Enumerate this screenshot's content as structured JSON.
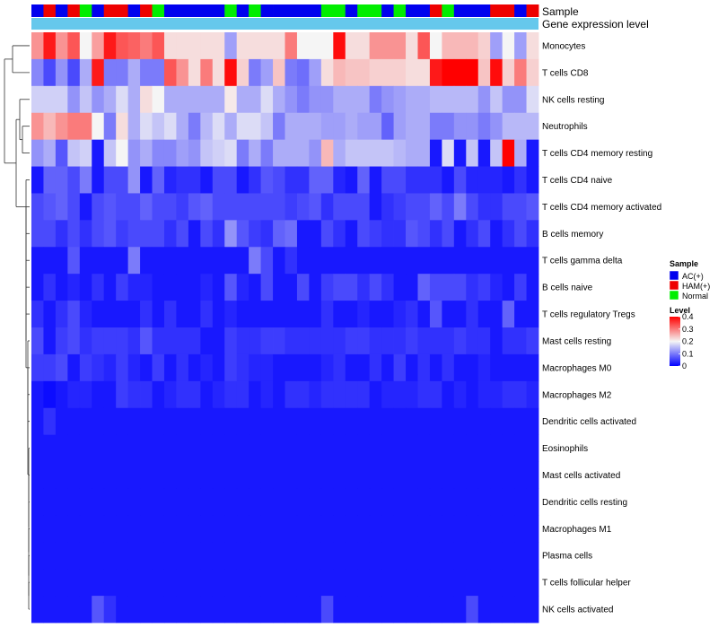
{
  "chart_data": {
    "type": "heatmap",
    "title": "",
    "annotation_rows": [
      {
        "name": "Sample",
        "legend_title": "Sample"
      },
      {
        "name": "Gene expression level",
        "legend_title": ""
      }
    ],
    "annotation_colors": {
      "Sample": {
        "AC(+)": "#0000ee",
        "HAM(+)": "#ee0000",
        "Normal": "#00ee00"
      },
      "Gene expression level": "#66c8ec"
    },
    "sample_groups": [
      "AC(+)",
      "HAM(+)",
      "AC(+)",
      "HAM(+)",
      "Normal",
      "AC(+)",
      "HAM(+)",
      "HAM(+)",
      "AC(+)",
      "HAM(+)",
      "Normal",
      "AC(+)",
      "AC(+)",
      "AC(+)",
      "AC(+)",
      "AC(+)",
      "Normal",
      "AC(+)",
      "Normal",
      "AC(+)",
      "AC(+)",
      "AC(+)",
      "AC(+)",
      "AC(+)",
      "Normal",
      "Normal",
      "AC(+)",
      "Normal",
      "Normal",
      "AC(+)",
      "Normal",
      "AC(+)",
      "AC(+)",
      "HAM(+)",
      "Normal",
      "AC(+)",
      "AC(+)",
      "AC(+)",
      "HAM(+)",
      "HAM(+)",
      "AC(+)",
      "HAM(+)"
    ],
    "rows": [
      "Monocytes",
      "T cells CD8",
      "NK cells resting",
      "Neutrophils",
      "T cells CD4 memory resting",
      "T cells CD4 naive",
      "T cells CD4 memory activated",
      "B cells memory",
      "T cells gamma delta",
      "B cells naive",
      "T cells regulatory  Tregs",
      "Mast cells resting",
      "Macrophages M0",
      "Macrophages M2",
      "Dendritic cells activated",
      "Eosinophils",
      "Mast cells activated",
      "Dendritic cells resting",
      "Macrophages M1",
      "Plasma cells",
      "T cells follicular helper",
      "NK cells activated"
    ],
    "values": [
      [
        0.28,
        0.38,
        0.28,
        0.33,
        0.2,
        0.27,
        0.38,
        0.33,
        0.32,
        0.3,
        0.33,
        0.22,
        0.22,
        0.22,
        0.22,
        0.22,
        0.13,
        0.22,
        0.22,
        0.22,
        0.22,
        0.3,
        0.2,
        0.2,
        0.2,
        0.39,
        0.22,
        0.22,
        0.28,
        0.28,
        0.28,
        0.22,
        0.33,
        0.2,
        0.25,
        0.25,
        0.25,
        0.23,
        0.13,
        0.2,
        0.13,
        0.22
      ],
      [
        0.11,
        0.06,
        0.12,
        0.06,
        0.14,
        0.38,
        0.1,
        0.1,
        0.14,
        0.1,
        0.1,
        0.33,
        0.28,
        0.22,
        0.3,
        0.22,
        0.39,
        0.23,
        0.1,
        0.13,
        0.24,
        0.1,
        0.09,
        0.13,
        0.22,
        0.25,
        0.24,
        0.24,
        0.23,
        0.23,
        0.23,
        0.22,
        0.22,
        0.38,
        0.4,
        0.4,
        0.4,
        0.24,
        0.39,
        0.23,
        0.3,
        0.23
      ],
      [
        0.17,
        0.17,
        0.17,
        0.12,
        0.16,
        0.12,
        0.14,
        0.18,
        0.14,
        0.22,
        0.2,
        0.14,
        0.14,
        0.14,
        0.14,
        0.14,
        0.21,
        0.14,
        0.14,
        0.18,
        0.14,
        0.12,
        0.1,
        0.12,
        0.12,
        0.14,
        0.14,
        0.14,
        0.1,
        0.12,
        0.13,
        0.14,
        0.14,
        0.15,
        0.15,
        0.15,
        0.15,
        0.12,
        0.16,
        0.12,
        0.12,
        0.18
      ],
      [
        0.28,
        0.25,
        0.28,
        0.3,
        0.3,
        0.2,
        0.1,
        0.22,
        0.14,
        0.18,
        0.16,
        0.18,
        0.14,
        0.1,
        0.15,
        0.18,
        0.14,
        0.18,
        0.18,
        0.16,
        0.1,
        0.14,
        0.14,
        0.14,
        0.13,
        0.13,
        0.14,
        0.13,
        0.13,
        0.08,
        0.13,
        0.14,
        0.14,
        0.1,
        0.1,
        0.12,
        0.12,
        0.1,
        0.12,
        0.15,
        0.15,
        0.15
      ],
      [
        0.12,
        0.14,
        0.07,
        0.16,
        0.17,
        0.02,
        0.16,
        0.2,
        0.12,
        0.14,
        0.11,
        0.11,
        0.13,
        0.12,
        0.16,
        0.17,
        0.18,
        0.1,
        0.14,
        0.1,
        0.14,
        0.14,
        0.14,
        0.12,
        0.25,
        0.14,
        0.16,
        0.16,
        0.16,
        0.16,
        0.15,
        0.14,
        0.14,
        0.02,
        0.18,
        0.02,
        0.16,
        0.02,
        0.16,
        0.4,
        0.14,
        0.02
      ],
      [
        0.02,
        0.08,
        0.08,
        0.06,
        0.1,
        0.02,
        0.06,
        0.06,
        0.12,
        0.02,
        0.08,
        0.03,
        0.04,
        0.04,
        0.02,
        0.06,
        0.06,
        0.02,
        0.04,
        0.07,
        0.06,
        0.04,
        0.04,
        0.08,
        0.08,
        0.03,
        0.02,
        0.08,
        0.02,
        0.06,
        0.06,
        0.04,
        0.04,
        0.04,
        0.02,
        0.06,
        0.03,
        0.03,
        0.03,
        0.02,
        0.04,
        0.02
      ],
      [
        0.06,
        0.07,
        0.08,
        0.06,
        0.02,
        0.06,
        0.07,
        0.06,
        0.06,
        0.08,
        0.06,
        0.06,
        0.05,
        0.07,
        0.08,
        0.06,
        0.06,
        0.06,
        0.06,
        0.06,
        0.06,
        0.05,
        0.06,
        0.07,
        0.04,
        0.06,
        0.06,
        0.06,
        0.02,
        0.04,
        0.05,
        0.06,
        0.06,
        0.08,
        0.06,
        0.1,
        0.06,
        0.04,
        0.04,
        0.06,
        0.06,
        0.07
      ],
      [
        0.06,
        0.06,
        0.04,
        0.06,
        0.04,
        0.06,
        0.07,
        0.05,
        0.06,
        0.06,
        0.06,
        0.04,
        0.06,
        0.02,
        0.06,
        0.04,
        0.12,
        0.07,
        0.05,
        0.04,
        0.08,
        0.09,
        0.02,
        0.02,
        0.06,
        0.04,
        0.02,
        0.06,
        0.05,
        0.04,
        0.04,
        0.07,
        0.06,
        0.04,
        0.06,
        0.02,
        0.04,
        0.06,
        0.02,
        0.04,
        0.06,
        0.04
      ],
      [
        0.02,
        0.02,
        0.02,
        0.07,
        0.02,
        0.02,
        0.02,
        0.02,
        0.1,
        0.02,
        0.02,
        0.02,
        0.02,
        0.02,
        0.02,
        0.02,
        0.02,
        0.02,
        0.1,
        0.06,
        0.02,
        0.04,
        0.02,
        0.02,
        0.02,
        0.02,
        0.02,
        0.02,
        0.02,
        0.02,
        0.02,
        0.02,
        0.02,
        0.02,
        0.02,
        0.02,
        0.02,
        0.02,
        0.02,
        0.02,
        0.02,
        0.02
      ],
      [
        0.02,
        0.04,
        0.02,
        0.03,
        0.02,
        0.04,
        0.02,
        0.05,
        0.03,
        0.03,
        0.02,
        0.02,
        0.02,
        0.02,
        0.03,
        0.02,
        0.07,
        0.03,
        0.02,
        0.06,
        0.02,
        0.02,
        0.06,
        0.02,
        0.05,
        0.06,
        0.06,
        0.04,
        0.06,
        0.04,
        0.02,
        0.02,
        0.08,
        0.06,
        0.06,
        0.06,
        0.04,
        0.05,
        0.03,
        0.02,
        0.05,
        0.02
      ],
      [
        0.04,
        0.02,
        0.04,
        0.06,
        0.03,
        0.02,
        0.02,
        0.02,
        0.02,
        0.04,
        0.02,
        0.04,
        0.02,
        0.02,
        0.04,
        0.02,
        0.03,
        0.02,
        0.02,
        0.02,
        0.02,
        0.02,
        0.02,
        0.02,
        0.04,
        0.02,
        0.02,
        0.03,
        0.02,
        0.02,
        0.03,
        0.04,
        0.02,
        0.07,
        0.02,
        0.02,
        0.04,
        0.02,
        0.02,
        0.08,
        0.02,
        0.02
      ],
      [
        0.06,
        0.02,
        0.05,
        0.06,
        0.04,
        0.05,
        0.05,
        0.05,
        0.04,
        0.07,
        0.04,
        0.04,
        0.04,
        0.04,
        0.02,
        0.02,
        0.05,
        0.04,
        0.04,
        0.05,
        0.05,
        0.04,
        0.04,
        0.04,
        0.04,
        0.04,
        0.05,
        0.05,
        0.04,
        0.04,
        0.04,
        0.05,
        0.04,
        0.04,
        0.04,
        0.05,
        0.04,
        0.04,
        0.02,
        0.04,
        0.04,
        0.05
      ],
      [
        0.05,
        0.05,
        0.06,
        0.02,
        0.05,
        0.04,
        0.03,
        0.05,
        0.03,
        0.02,
        0.05,
        0.02,
        0.04,
        0.02,
        0.03,
        0.02,
        0.05,
        0.04,
        0.03,
        0.03,
        0.02,
        0.02,
        0.02,
        0.02,
        0.03,
        0.04,
        0.02,
        0.02,
        0.04,
        0.02,
        0.05,
        0.02,
        0.04,
        0.02,
        0.04,
        0.02,
        0.02,
        0.03,
        0.02,
        0.02,
        0.02,
        0.02
      ],
      [
        0.02,
        0.01,
        0.02,
        0.03,
        0.03,
        0.02,
        0.02,
        0.05,
        0.04,
        0.04,
        0.02,
        0.03,
        0.04,
        0.04,
        0.02,
        0.03,
        0.04,
        0.04,
        0.02,
        0.03,
        0.02,
        0.04,
        0.04,
        0.03,
        0.04,
        0.04,
        0.04,
        0.04,
        0.02,
        0.03,
        0.03,
        0.03,
        0.04,
        0.04,
        0.02,
        0.03,
        0.02,
        0.03,
        0.03,
        0.04,
        0.04,
        0.03
      ],
      [
        0.02,
        0.04,
        0.02,
        0.02,
        0.02,
        0.02,
        0.02,
        0.02,
        0.02,
        0.02,
        0.02,
        0.02,
        0.02,
        0.02,
        0.02,
        0.02,
        0.02,
        0.02,
        0.02,
        0.02,
        0.02,
        0.02,
        0.02,
        0.02,
        0.02,
        0.02,
        0.02,
        0.02,
        0.02,
        0.02,
        0.02,
        0.02,
        0.02,
        0.02,
        0.02,
        0.02,
        0.02,
        0.02,
        0.02,
        0.02,
        0.02,
        0.02
      ],
      [
        0.02,
        0.02,
        0.02,
        0.02,
        0.02,
        0.02,
        0.02,
        0.02,
        0.02,
        0.02,
        0.02,
        0.02,
        0.02,
        0.02,
        0.02,
        0.02,
        0.02,
        0.02,
        0.02,
        0.02,
        0.02,
        0.02,
        0.02,
        0.02,
        0.02,
        0.02,
        0.02,
        0.02,
        0.02,
        0.02,
        0.02,
        0.02,
        0.02,
        0.02,
        0.02,
        0.02,
        0.02,
        0.02,
        0.02,
        0.02,
        0.02,
        0.02
      ],
      [
        0.02,
        0.02,
        0.02,
        0.02,
        0.02,
        0.02,
        0.02,
        0.02,
        0.02,
        0.02,
        0.02,
        0.02,
        0.02,
        0.02,
        0.02,
        0.02,
        0.02,
        0.02,
        0.02,
        0.02,
        0.02,
        0.02,
        0.02,
        0.02,
        0.02,
        0.02,
        0.02,
        0.02,
        0.02,
        0.02,
        0.02,
        0.02,
        0.02,
        0.02,
        0.02,
        0.02,
        0.02,
        0.02,
        0.02,
        0.02,
        0.02,
        0.02
      ],
      [
        0.02,
        0.02,
        0.02,
        0.02,
        0.02,
        0.02,
        0.02,
        0.02,
        0.02,
        0.02,
        0.02,
        0.02,
        0.02,
        0.02,
        0.02,
        0.02,
        0.02,
        0.02,
        0.02,
        0.02,
        0.02,
        0.02,
        0.02,
        0.02,
        0.02,
        0.02,
        0.02,
        0.02,
        0.02,
        0.02,
        0.02,
        0.02,
        0.02,
        0.02,
        0.02,
        0.02,
        0.02,
        0.02,
        0.02,
        0.02,
        0.02,
        0.02
      ],
      [
        0.02,
        0.02,
        0.02,
        0.02,
        0.02,
        0.02,
        0.02,
        0.02,
        0.02,
        0.02,
        0.02,
        0.02,
        0.02,
        0.02,
        0.02,
        0.02,
        0.02,
        0.02,
        0.02,
        0.02,
        0.02,
        0.02,
        0.02,
        0.02,
        0.02,
        0.02,
        0.02,
        0.02,
        0.02,
        0.02,
        0.02,
        0.02,
        0.02,
        0.02,
        0.02,
        0.02,
        0.02,
        0.02,
        0.02,
        0.02,
        0.02,
        0.02
      ],
      [
        0.02,
        0.02,
        0.02,
        0.02,
        0.02,
        0.02,
        0.02,
        0.02,
        0.02,
        0.02,
        0.02,
        0.02,
        0.02,
        0.02,
        0.02,
        0.02,
        0.02,
        0.02,
        0.02,
        0.02,
        0.02,
        0.02,
        0.02,
        0.02,
        0.02,
        0.02,
        0.02,
        0.02,
        0.02,
        0.02,
        0.02,
        0.02,
        0.02,
        0.02,
        0.02,
        0.02,
        0.02,
        0.02,
        0.02,
        0.02,
        0.02,
        0.02
      ],
      [
        0.02,
        0.02,
        0.02,
        0.02,
        0.02,
        0.02,
        0.02,
        0.02,
        0.02,
        0.02,
        0.02,
        0.02,
        0.02,
        0.02,
        0.02,
        0.02,
        0.02,
        0.02,
        0.02,
        0.02,
        0.02,
        0.02,
        0.02,
        0.02,
        0.02,
        0.02,
        0.02,
        0.02,
        0.02,
        0.02,
        0.02,
        0.02,
        0.02,
        0.02,
        0.02,
        0.02,
        0.02,
        0.02,
        0.02,
        0.02,
        0.02,
        0.02
      ],
      [
        0.02,
        0.02,
        0.02,
        0.02,
        0.02,
        0.07,
        0.04,
        0.02,
        0.02,
        0.02,
        0.02,
        0.02,
        0.02,
        0.02,
        0.02,
        0.02,
        0.02,
        0.02,
        0.02,
        0.02,
        0.02,
        0.02,
        0.02,
        0.02,
        0.06,
        0.02,
        0.02,
        0.02,
        0.02,
        0.02,
        0.02,
        0.02,
        0.02,
        0.02,
        0.02,
        0.02,
        0.06,
        0.02,
        0.02,
        0.02,
        0.02,
        0.02
      ]
    ],
    "color_scale": {
      "title": "Level",
      "ticks": [
        "0.4",
        "0.3",
        "0.2",
        "0.1",
        "0"
      ],
      "domain": [
        0,
        0.4
      ],
      "colors": [
        "#0000ff",
        "#f5f5f5",
        "#ff0000"
      ]
    }
  }
}
